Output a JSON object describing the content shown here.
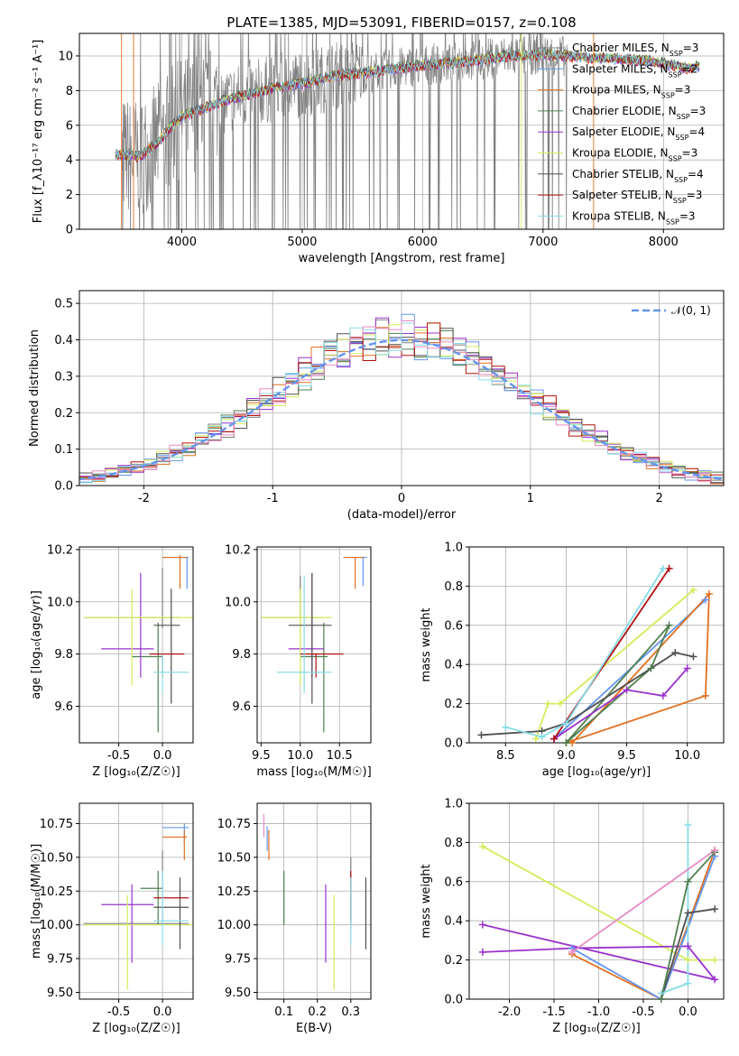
{
  "figure_title": "PLATE=1385, MJD=53091, FIBERID=0157, z=0.108",
  "legend_entries": [
    {
      "base": "Chabrier MILES, N",
      "sub": "SSP",
      "tail": "=3",
      "color": "#808080"
    },
    {
      "base": "Salpeter MILES, N",
      "sub": "SSP",
      "tail": "=2",
      "color": "#6495ed"
    },
    {
      "base": "Kroupa MILES, N",
      "sub": "SSP",
      "tail": "=3",
      "color": "#e07020"
    },
    {
      "base": "Chabrier ELODIE, N",
      "sub": "SSP",
      "tail": "=3",
      "color": "#4f7f4f"
    },
    {
      "base": "Salpeter ELODIE, N",
      "sub": "SSP",
      "tail": "=4",
      "color": "#9932cc"
    },
    {
      "base": "Kroupa ELODIE, N",
      "sub": "SSP",
      "tail": "=3",
      "color": "#d4ec5a"
    },
    {
      "base": "Chabrier STELIB, N",
      "sub": "SSP",
      "tail": "=4",
      "color": "#505050"
    },
    {
      "base": "Salpeter STELIB, N",
      "sub": "SSP",
      "tail": "=3",
      "color": "#b01010"
    },
    {
      "base": "Kroupa STELIB, N",
      "sub": "SSP",
      "tail": "=3",
      "color": "#87dce6"
    }
  ],
  "chart_data": [
    {
      "id": "spectrum",
      "type": "line",
      "xlabel": "wavelength [Angstrom, rest frame]",
      "ylabel": "Flux [f_λ 10^-17 erg cm^-2 s^-1 A^-1]",
      "xlim": [
        3150,
        8500
      ],
      "ylim": [
        0,
        11.3
      ],
      "xticks": [
        4000,
        5000,
        6000,
        7000,
        8000
      ],
      "yticks": [
        0,
        2,
        4,
        6,
        8,
        10
      ],
      "continuum_knots": {
        "x": [
          3450,
          3650,
          3800,
          3900,
          4000,
          4300,
          4500,
          4800,
          5000,
          5300,
          5600,
          5900,
          6200,
          6500,
          6700,
          7000,
          7300,
          7600,
          7900,
          8200,
          8300
        ],
        "y": [
          4.3,
          4.2,
          5.0,
          5.8,
          6.5,
          7.3,
          7.7,
          8.2,
          8.4,
          8.9,
          9.1,
          9.4,
          9.6,
          9.8,
          10.0,
          10.1,
          9.95,
          9.85,
          9.7,
          9.3,
          9.4
        ]
      },
      "noisy_data_range": [
        3500,
        7200
      ]
    },
    {
      "id": "residual_histogram",
      "type": "bar",
      "xlabel": "(data-model)/error",
      "ylabel": "Normed distribution",
      "xlim": [
        -2.5,
        2.5
      ],
      "ylim": [
        0,
        0.535
      ],
      "xticks": [
        -2,
        -1,
        0,
        1,
        2
      ],
      "yticks": [
        0,
        0.1,
        0.2,
        0.3,
        0.4,
        0.5
      ],
      "legend": "𝒩(0, 1)",
      "reference_curve": {
        "type": "gaussian",
        "mean": 0,
        "sigma": 1,
        "color": "#6495ed"
      },
      "bin_width": 0.1
    },
    {
      "id": "age_vs_Z",
      "type": "errorbar",
      "xlabel": "Z [log10(Z/Z⊙)]",
      "ylabel": "age [log10(age/yr)]",
      "xlim": [
        -0.95,
        0.35
      ],
      "ylim": [
        9.46,
        10.21
      ],
      "xticks": [
        -0.5,
        0.0
      ],
      "yticks": [
        9.6,
        9.8,
        10.0,
        10.2
      ],
      "series": [
        {
          "name": "Chabrier MILES",
          "x": [
            0.0,
            0.0
          ],
          "y": [
            9.7,
            10.1
          ],
          "color": "#808080"
        },
        {
          "name": "Salpeter MILES",
          "x": [
            0.0,
            0.28
          ],
          "y": [
            10.17,
            10.17
          ],
          "color": "#6495ed"
        },
        {
          "name": "Kroupa MILES",
          "x": [
            0.0,
            0.28
          ],
          "y": [
            10.05,
            10.18
          ],
          "color": "#e07020"
        },
        {
          "name": "Chabrier ELODIE",
          "x": [
            -0.3,
            0.0
          ],
          "y": [
            9.5,
            9.95
          ],
          "color": "#4f7f4f"
        },
        {
          "name": "Salpeter ELODIE",
          "x": [
            -0.7,
            -0.1
          ],
          "y": [
            9.7,
            10.1
          ],
          "color": "#9932cc"
        },
        {
          "name": "Kroupa ELODIE",
          "x": [
            -0.9,
            0.35
          ],
          "y": [
            9.68,
            10.05
          ],
          "color": "#d4ec5a"
        },
        {
          "name": "Chabrier STELIB",
          "x": [
            -0.1,
            0.25
          ],
          "y": [
            9.61,
            10.1
          ],
          "color": "#505050"
        },
        {
          "name": "Salpeter STELIB",
          "x": [
            -0.1,
            0.3
          ],
          "y": [
            9.8,
            9.8
          ],
          "color": "#b01010"
        },
        {
          "name": "Kroupa STELIB",
          "x": [
            -0.1,
            0.3
          ],
          "y": [
            9.65,
            9.8
          ],
          "color": "#87dce6"
        }
      ]
    },
    {
      "id": "age_vs_mass",
      "type": "errorbar",
      "xlabel": "mass [log10(M/M⊙)]",
      "ylabel": "",
      "xlim": [
        9.45,
        10.9
      ],
      "ylim": [
        9.46,
        10.21
      ],
      "xticks": [
        9.5,
        10.0,
        10.5
      ],
      "yticks": [
        9.6,
        9.8,
        10.0,
        10.2
      ],
      "series": []
    },
    {
      "id": "massweight_vs_age",
      "type": "line",
      "xlabel": "age [log10(age/yr)]",
      "ylabel": "mass weight",
      "xlim": [
        8.2,
        10.3
      ],
      "ylim": [
        0.0,
        1.0
      ],
      "xticks": [
        8.5,
        9.0,
        9.5,
        10.0
      ],
      "yticks": [
        0.0,
        0.2,
        0.4,
        0.6,
        0.8,
        1.0
      ],
      "series": [
        {
          "name": "Salpeter MILES",
          "x": [
            8.9,
            10.15
          ],
          "y": [
            0.02,
            0.73
          ],
          "color": "#6495ed"
        },
        {
          "name": "Kroupa MILES",
          "x": [
            9.0,
            10.15,
            10.18,
            9.05
          ],
          "y": [
            0.0,
            0.24,
            0.76,
            0.0
          ],
          "color": "#e07020"
        },
        {
          "name": "Chabrier ELODIE",
          "x": [
            9.0,
            9.7,
            9.85,
            9.0
          ],
          "y": [
            0.0,
            0.38,
            0.6,
            0.0
          ],
          "color": "#4f7f4f"
        },
        {
          "name": "Salpeter ELODIE",
          "x": [
            8.9,
            9.5,
            9.8,
            10.0
          ],
          "y": [
            0.02,
            0.27,
            0.24,
            0.38
          ],
          "color": "#9932cc"
        },
        {
          "name": "Kroupa ELODIE",
          "x": [
            8.75,
            8.85,
            8.95,
            10.05
          ],
          "y": [
            0.02,
            0.2,
            0.2,
            0.78
          ],
          "color": "#d4ec5a"
        },
        {
          "name": "Chabrier STELIB",
          "x": [
            8.3,
            8.8,
            9.0,
            9.9,
            10.05
          ],
          "y": [
            0.04,
            0.06,
            0.1,
            0.46,
            0.44
          ],
          "color": "#505050"
        },
        {
          "name": "Salpeter STELIB",
          "x": [
            8.9,
            9.85
          ],
          "y": [
            0.02,
            0.89
          ],
          "color": "#b01010"
        },
        {
          "name": "Kroupa STELIB",
          "x": [
            8.5,
            8.8,
            9.0,
            9.8
          ],
          "y": [
            0.08,
            0.03,
            0.1,
            0.89
          ],
          "color": "#87dce6"
        }
      ]
    },
    {
      "id": "mass_vs_Z",
      "type": "errorbar",
      "xlabel": "Z [log10(Z/Z⊙)]",
      "ylabel": "mass [log10(M/M⊙)]",
      "xlim": [
        -0.95,
        0.35
      ],
      "ylim": [
        9.45,
        10.9
      ],
      "xticks": [
        -0.5,
        0.0
      ],
      "yticks": [
        9.5,
        9.75,
        10.0,
        10.25,
        10.5,
        10.75
      ],
      "series": []
    },
    {
      "id": "mass_vs_ebv",
      "type": "errorbar",
      "xlabel": "E(B-V)",
      "ylabel": "",
      "xlim": [
        0.02,
        0.36
      ],
      "ylim": [
        9.45,
        10.9
      ],
      "xticks": [
        0.1,
        0.2,
        0.3
      ],
      "yticks": [
        9.5,
        9.75,
        10.0,
        10.25,
        10.5,
        10.75
      ],
      "series": []
    },
    {
      "id": "massweight_vs_Z",
      "type": "line",
      "xlabel": "Z [log10(Z/Z⊙)]",
      "ylabel": "mass weight",
      "xlim": [
        -2.45,
        0.4
      ],
      "ylim": [
        0.0,
        1.0
      ],
      "xticks": [
        -2.0,
        -1.5,
        -1.0,
        -0.5,
        0.0
      ],
      "yticks": [
        0.0,
        0.2,
        0.4,
        0.6,
        0.8,
        1.0
      ],
      "series": [
        {
          "name": "Kroupa ELODIE",
          "x": [
            -2.3,
            0.0,
            0.3
          ],
          "y": [
            0.78,
            0.2,
            0.2
          ],
          "color": "#d4ec5a"
        },
        {
          "name": "Salpeter ELODIE",
          "x": [
            -2.3,
            -1.3,
            0.0,
            0.3,
            -2.3
          ],
          "y": [
            0.24,
            0.26,
            0.27,
            0.1,
            0.38
          ],
          "color": "#9932cc"
        },
        {
          "name": "Kroupa MILES",
          "x": [
            -1.3,
            -0.3,
            0.3
          ],
          "y": [
            0.23,
            0.0,
            0.76
          ],
          "color": "#e07020"
        },
        {
          "name": "Salpeter MILES",
          "x": [
            -1.3,
            -0.3,
            0.3
          ],
          "y": [
            0.26,
            0.0,
            0.73
          ],
          "color": "#6495ed"
        },
        {
          "name": "Chabrier STELIB",
          "x": [
            -0.3,
            0.0,
            0.3
          ],
          "y": [
            0.0,
            0.44,
            0.46
          ],
          "color": "#505050"
        },
        {
          "name": "Kroupa STELIB",
          "x": [
            -0.3,
            0.0,
            0.0
          ],
          "y": [
            0.03,
            0.08,
            0.89
          ],
          "color": "#87dce6"
        },
        {
          "name": "Chabrier ELODIE",
          "x": [
            -0.3,
            0.0,
            0.3
          ],
          "y": [
            0.0,
            0.6,
            0.75
          ],
          "color": "#4f7f4f"
        },
        {
          "name": "Chabrier MILES",
          "x": [
            -1.3,
            0.3
          ],
          "y": [
            0.24,
            0.76
          ],
          "color": "#e78ac3"
        }
      ]
    }
  ]
}
